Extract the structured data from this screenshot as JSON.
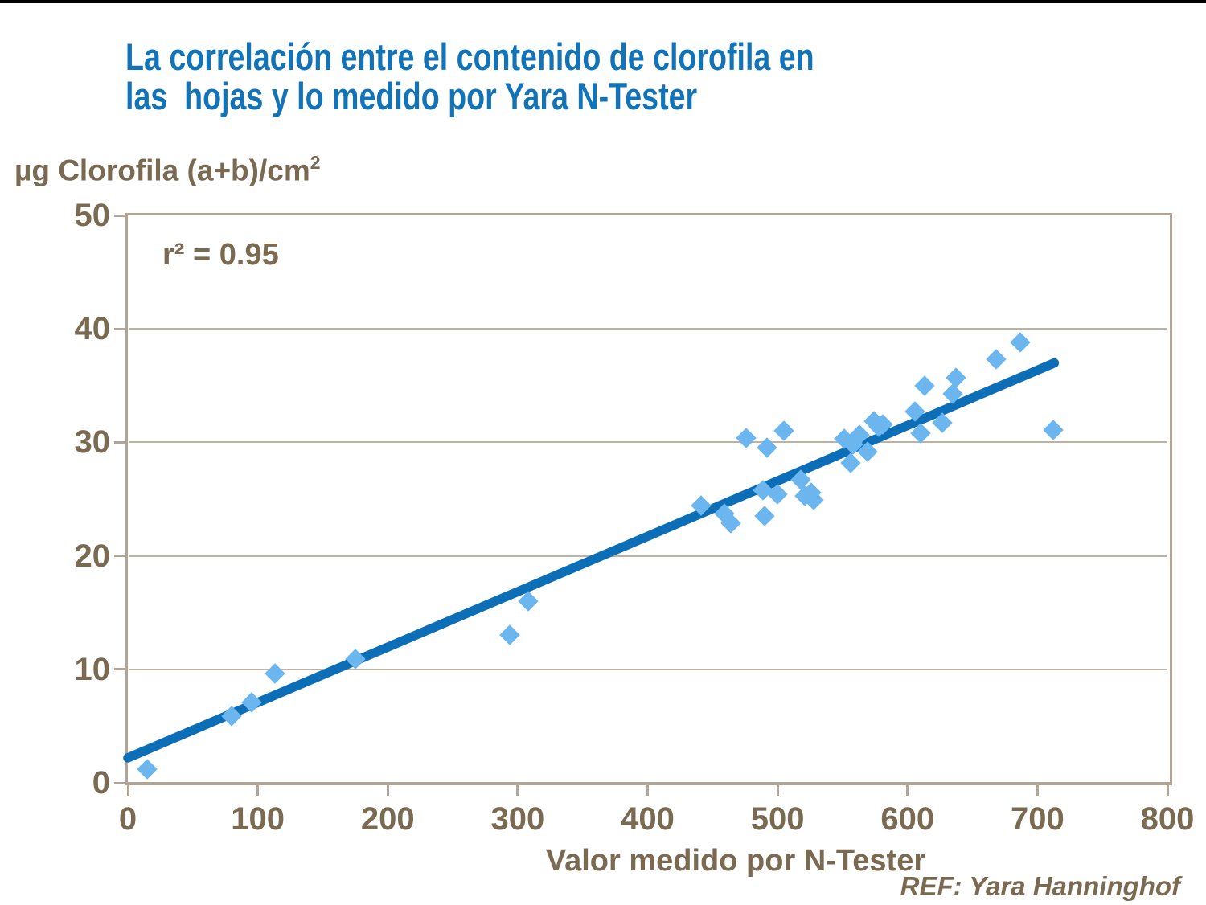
{
  "page": {
    "title_line1": "La correlación entre el contenido de clorofila en",
    "title_line2": "las  hojas y lo medido por Yara N-Tester",
    "ref_note": "REF: Yara Hanninghof"
  },
  "colors": {
    "title_blue": "#1273b8",
    "label_brown": "#7a6a52",
    "axis_tan": "#b2a595",
    "grid_tan": "#bcb1a2",
    "point_fill": "#6cb6f0",
    "trend_blue": "#0d6eb8",
    "top_bar": "#000000"
  },
  "chart_data": {
    "type": "scatter",
    "title": "La correlación entre el contenido de clorofila en las hojas y lo medido por Yara N-Tester",
    "xlabel": "Valor medido por N-Tester",
    "ylabel": "µg Clorofila (a+b)/cm²",
    "ylabel_base": "µg Clorofila (a+b)/cm",
    "ylabel_sup": "2",
    "annotation": "r² = 0.95",
    "xlim": [
      0,
      800
    ],
    "ylim": [
      0,
      50
    ],
    "x_ticks": [
      0,
      100,
      200,
      300,
      400,
      500,
      600,
      700,
      800
    ],
    "y_ticks": [
      0,
      10,
      20,
      30,
      40,
      50
    ],
    "grid": "horizontal-only",
    "legend": "none",
    "marker": "diamond",
    "points": [
      [
        15,
        1.2
      ],
      [
        80,
        5.9
      ],
      [
        95,
        7.1
      ],
      [
        113,
        9.6
      ],
      [
        175,
        10.9
      ],
      [
        294,
        13.0
      ],
      [
        308,
        16.0
      ],
      [
        441,
        24.4
      ],
      [
        459,
        23.7
      ],
      [
        464,
        22.9
      ],
      [
        476,
        30.4
      ],
      [
        489,
        25.8
      ],
      [
        490,
        23.5
      ],
      [
        492,
        29.5
      ],
      [
        500,
        25.4
      ],
      [
        505,
        31.0
      ],
      [
        518,
        26.7
      ],
      [
        521,
        25.3
      ],
      [
        526,
        25.6
      ],
      [
        528,
        24.9
      ],
      [
        551,
        30.3
      ],
      [
        556,
        28.2
      ],
      [
        558,
        29.8
      ],
      [
        563,
        30.7
      ],
      [
        569,
        29.2
      ],
      [
        574,
        31.9
      ],
      [
        578,
        31.4
      ],
      [
        581,
        31.6
      ],
      [
        606,
        32.7
      ],
      [
        610,
        30.8
      ],
      [
        613,
        35.0
      ],
      [
        627,
        31.7
      ],
      [
        635,
        34.3
      ],
      [
        637,
        35.7
      ],
      [
        668,
        37.3
      ],
      [
        687,
        38.8
      ],
      [
        712,
        31.1
      ]
    ],
    "trendline": {
      "x1": 0,
      "y1": 2.2,
      "x2": 713,
      "y2": 37.0
    }
  }
}
